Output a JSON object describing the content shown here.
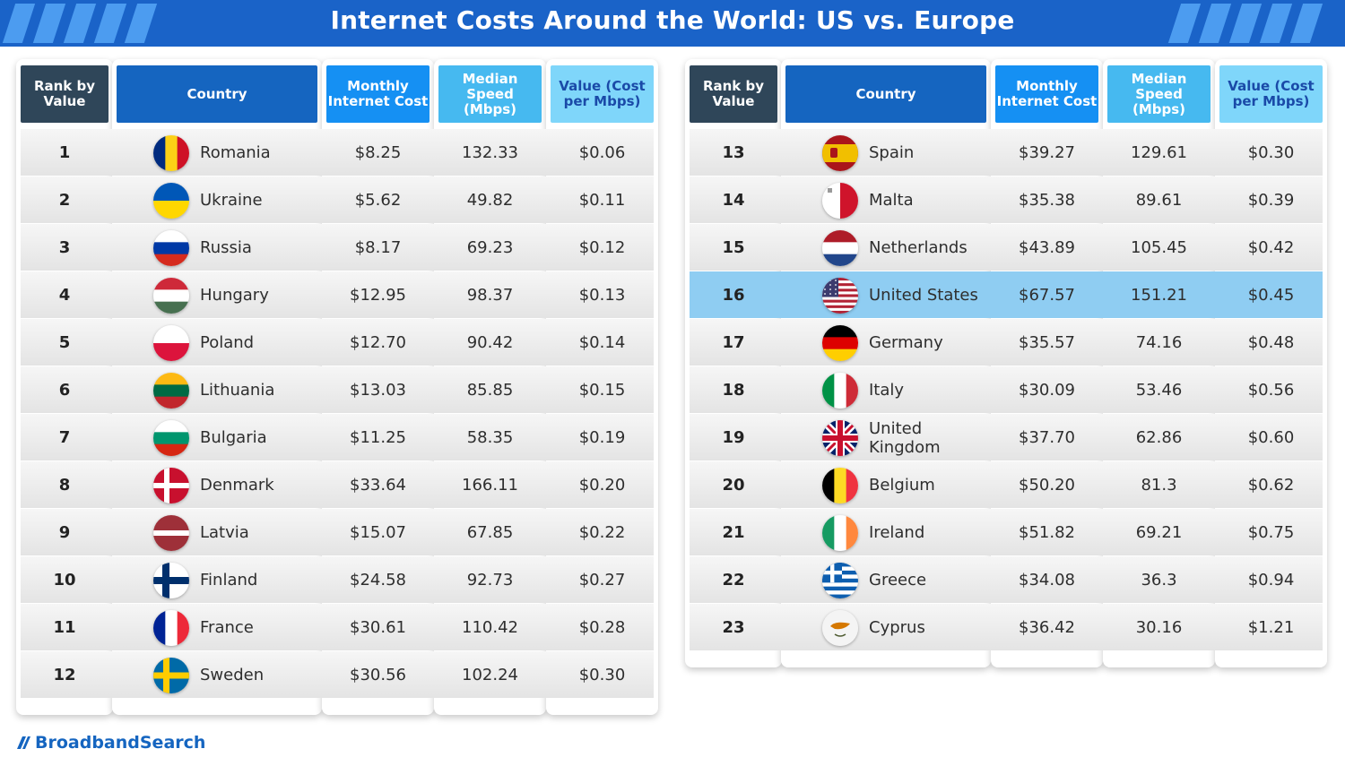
{
  "title": "Internet Costs Around the World: US vs. Europe",
  "brand": "BroadbandSearch",
  "headers": {
    "rank": "Rank by Value",
    "country": "Country",
    "cost": "Monthly Internet Cost",
    "speed": "Median Speed (Mbps)",
    "value": "Value (Cost per Mbps)"
  },
  "colors": {
    "banner": "#1a63c8",
    "highlight": "#8fcdf2",
    "rank_header": "#2f4659",
    "country_header": "#1565c0",
    "cost_header": "#1590f3",
    "speed_header": "#46b9f0",
    "value_header": "#7fd6fa"
  },
  "left_rows": [
    {
      "rank": "1",
      "country": "Romania",
      "flag": "romania-flag-icon",
      "cost": "$8.25",
      "speed": "132.33",
      "value": "$0.06"
    },
    {
      "rank": "2",
      "country": "Ukraine",
      "flag": "ukraine-flag-icon",
      "cost": "$5.62",
      "speed": "49.82",
      "value": "$0.11"
    },
    {
      "rank": "3",
      "country": "Russia",
      "flag": "russia-flag-icon",
      "cost": "$8.17",
      "speed": "69.23",
      "value": "$0.12"
    },
    {
      "rank": "4",
      "country": "Hungary",
      "flag": "hungary-flag-icon",
      "cost": "$12.95",
      "speed": "98.37",
      "value": "$0.13"
    },
    {
      "rank": "5",
      "country": "Poland",
      "flag": "poland-flag-icon",
      "cost": "$12.70",
      "speed": "90.42",
      "value": "$0.14"
    },
    {
      "rank": "6",
      "country": "Lithuania",
      "flag": "lithuania-flag-icon",
      "cost": "$13.03",
      "speed": "85.85",
      "value": "$0.15"
    },
    {
      "rank": "7",
      "country": "Bulgaria",
      "flag": "bulgaria-flag-icon",
      "cost": "$11.25",
      "speed": "58.35",
      "value": "$0.19"
    },
    {
      "rank": "8",
      "country": "Denmark",
      "flag": "denmark-flag-icon",
      "cost": "$33.64",
      "speed": "166.11",
      "value": "$0.20"
    },
    {
      "rank": "9",
      "country": "Latvia",
      "flag": "latvia-flag-icon",
      "cost": "$15.07",
      "speed": "67.85",
      "value": "$0.22"
    },
    {
      "rank": "10",
      "country": "Finland",
      "flag": "finland-flag-icon",
      "cost": "$24.58",
      "speed": "92.73",
      "value": "$0.27"
    },
    {
      "rank": "11",
      "country": "France",
      "flag": "france-flag-icon",
      "cost": "$30.61",
      "speed": "110.42",
      "value": "$0.28"
    },
    {
      "rank": "12",
      "country": "Sweden",
      "flag": "sweden-flag-icon",
      "cost": "$30.56",
      "speed": "102.24",
      "value": "$0.30"
    }
  ],
  "right_rows": [
    {
      "rank": "13",
      "country": "Spain",
      "flag": "spain-flag-icon",
      "cost": "$39.27",
      "speed": "129.61",
      "value": "$0.30"
    },
    {
      "rank": "14",
      "country": "Malta",
      "flag": "malta-flag-icon",
      "cost": "$35.38",
      "speed": "89.61",
      "value": "$0.39"
    },
    {
      "rank": "15",
      "country": "Netherlands",
      "flag": "netherlands-flag-icon",
      "cost": "$43.89",
      "speed": "105.45",
      "value": "$0.42"
    },
    {
      "rank": "16",
      "country": "United States",
      "flag": "united-states-flag-icon",
      "cost": "$67.57",
      "speed": "151.21",
      "value": "$0.45",
      "highlight": true
    },
    {
      "rank": "17",
      "country": "Germany",
      "flag": "germany-flag-icon",
      "cost": "$35.57",
      "speed": "74.16",
      "value": "$0.48"
    },
    {
      "rank": "18",
      "country": "Italy",
      "flag": "italy-flag-icon",
      "cost": "$30.09",
      "speed": "53.46",
      "value": "$0.56"
    },
    {
      "rank": "19",
      "country": "United Kingdom",
      "flag": "united-kingdom-flag-icon",
      "cost": "$37.70",
      "speed": "62.86",
      "value": "$0.60"
    },
    {
      "rank": "20",
      "country": "Belgium",
      "flag": "belgium-flag-icon",
      "cost": "$50.20",
      "speed": "81.3",
      "value": "$0.62"
    },
    {
      "rank": "21",
      "country": "Ireland",
      "flag": "ireland-flag-icon",
      "cost": "$51.82",
      "speed": "69.21",
      "value": "$0.75"
    },
    {
      "rank": "22",
      "country": "Greece",
      "flag": "greece-flag-icon",
      "cost": "$34.08",
      "speed": "36.3",
      "value": "$0.94"
    },
    {
      "rank": "23",
      "country": "Cyprus",
      "flag": "cyprus-flag-icon",
      "cost": "$36.42",
      "speed": "30.16",
      "value": "$1.21"
    }
  ]
}
